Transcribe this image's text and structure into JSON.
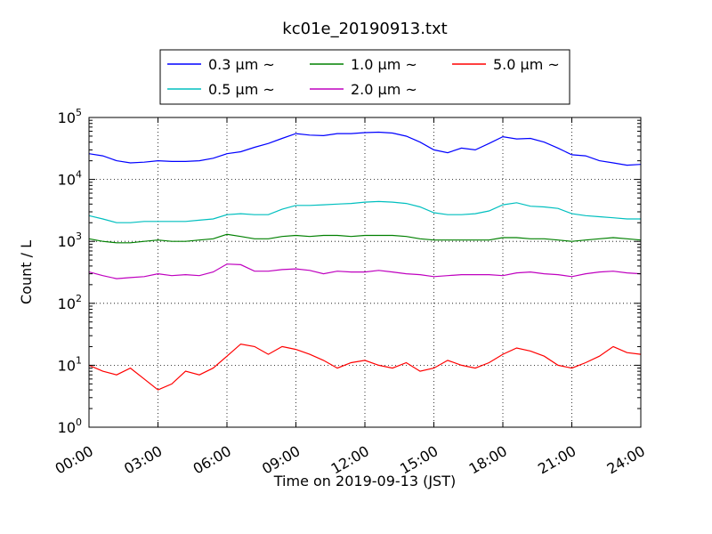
{
  "chart_data": {
    "type": "line",
    "title": "kc01e_20190913.txt",
    "xlabel": "Time on 2019-09-13 (JST)",
    "ylabel": "Count / L",
    "y_scale": "log",
    "ylim": [
      1,
      100000
    ],
    "xlim": [
      "00:00",
      "24:00"
    ],
    "grid": true,
    "grid_style": "dotted",
    "legend_placement": "top-center, above plot",
    "x_ticks": [
      "00:00",
      "03:00",
      "06:00",
      "09:00",
      "12:00",
      "15:00",
      "18:00",
      "21:00",
      "24:00"
    ],
    "y_ticks": [
      {
        "base": "10",
        "exp": "0",
        "value": 1
      },
      {
        "base": "10",
        "exp": "1",
        "value": 10
      },
      {
        "base": "10",
        "exp": "2",
        "value": 100
      },
      {
        "base": "10",
        "exp": "3",
        "value": 1000
      },
      {
        "base": "10",
        "exp": "4",
        "value": 10000
      },
      {
        "base": "10",
        "exp": "5",
        "value": 100000
      }
    ],
    "x_hours": [
      0.0,
      0.6,
      1.2,
      1.8,
      2.4,
      3.0,
      3.6,
      4.2,
      4.8,
      5.4,
      6.0,
      6.6,
      7.2,
      7.8,
      8.4,
      9.0,
      9.6,
      10.2,
      10.8,
      11.4,
      12.0,
      12.6,
      13.2,
      13.8,
      14.4,
      15.0,
      15.6,
      16.2,
      16.8,
      17.4,
      18.0,
      18.6,
      19.2,
      19.8,
      20.4,
      21.0,
      21.6,
      22.2,
      22.8,
      23.4,
      24.0
    ],
    "series": [
      {
        "name": "0.3 μm ~",
        "color": "#0000ff",
        "values": [
          26000,
          24000,
          20000,
          18500,
          19000,
          20000,
          19500,
          19500,
          20000,
          22000,
          26000,
          28000,
          33000,
          38000,
          46000,
          55000,
          52000,
          51000,
          55000,
          55000,
          57000,
          58000,
          56000,
          50000,
          40000,
          30000,
          27000,
          32000,
          30000,
          38000,
          49000,
          45000,
          46000,
          40000,
          32000,
          25000,
          24000,
          20000,
          18500,
          17000,
          17500
        ]
      },
      {
        "name": "0.5 μm ~",
        "color": "#00bfbf",
        "values": [
          2600,
          2300,
          2000,
          2000,
          2100,
          2100,
          2100,
          2100,
          2200,
          2300,
          2700,
          2800,
          2700,
          2700,
          3300,
          3800,
          3800,
          3900,
          4000,
          4100,
          4300,
          4400,
          4300,
          4100,
          3600,
          2900,
          2700,
          2700,
          2800,
          3100,
          3900,
          4200,
          3700,
          3600,
          3400,
          2800,
          2600,
          2500,
          2400,
          2300,
          2300
        ]
      },
      {
        "name": "1.0 μm ~",
        "color": "#008000",
        "values": [
          1100,
          1000,
          950,
          950,
          1000,
          1050,
          1000,
          1000,
          1050,
          1100,
          1300,
          1200,
          1100,
          1100,
          1200,
          1250,
          1200,
          1250,
          1250,
          1200,
          1250,
          1250,
          1250,
          1200,
          1100,
          1050,
          1050,
          1050,
          1050,
          1050,
          1150,
          1150,
          1100,
          1100,
          1050,
          1000,
          1050,
          1100,
          1150,
          1100,
          1050
        ]
      },
      {
        "name": "2.0 μm ~",
        "color": "#bf00bf",
        "values": [
          320,
          280,
          250,
          260,
          270,
          300,
          280,
          290,
          280,
          320,
          430,
          420,
          330,
          330,
          350,
          360,
          340,
          300,
          330,
          320,
          320,
          340,
          320,
          300,
          290,
          270,
          280,
          290,
          290,
          290,
          280,
          310,
          320,
          300,
          290,
          270,
          300,
          320,
          330,
          310,
          300
        ]
      },
      {
        "name": "5.0 μm ~",
        "color": "#ff0000",
        "values": [
          10,
          8,
          7,
          9,
          6,
          4,
          5,
          8,
          7,
          9,
          14,
          22,
          20,
          15,
          20,
          18,
          15,
          12,
          9,
          11,
          12,
          10,
          9,
          11,
          8,
          9,
          12,
          10,
          9,
          11,
          15,
          19,
          17,
          14,
          10,
          9,
          11,
          14,
          20,
          16,
          15
        ]
      }
    ]
  }
}
